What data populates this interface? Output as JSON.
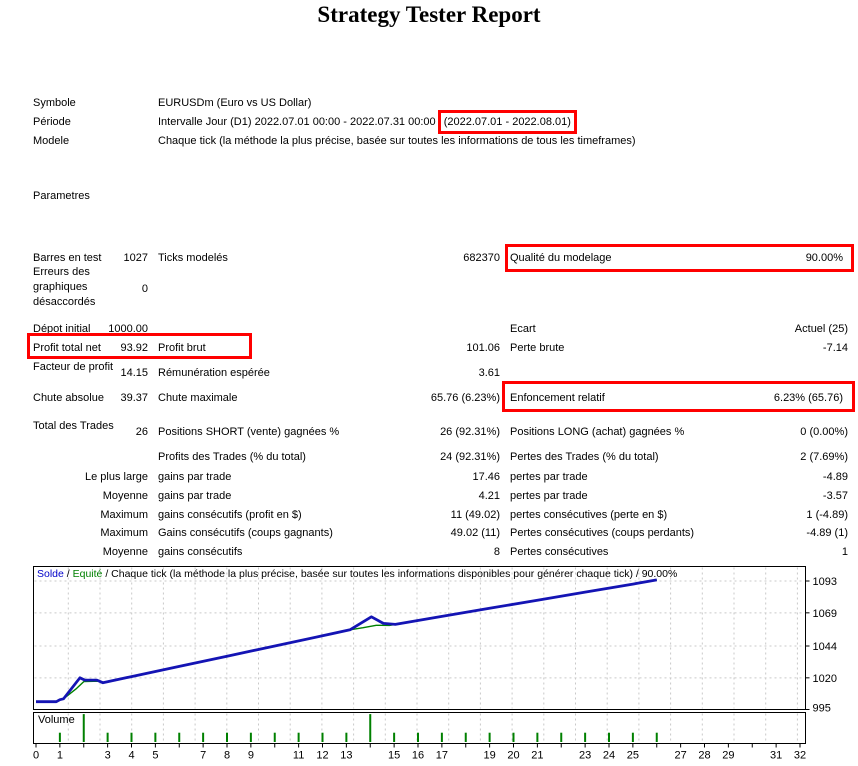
{
  "title": "Strategy Tester Report",
  "colors": {
    "highlight": "#ff0000",
    "balance": "#1414b4",
    "equity": "#008000",
    "grid": "#c9c9c9",
    "axis": "#000000"
  },
  "header": {
    "symbole_label": "Symbole",
    "symbole_value": "EURUSDm (Euro vs US Dollar)",
    "periode_label": "Période",
    "periode_value_pre": "Intervalle Jour (D1) 2022.07.01 00:00 - 2022.07.31 00:00 ",
    "periode_value_boxed": "(2022.07.01 - 2022.08.01)",
    "modele_label": "Modele",
    "modele_value": "Chaque tick (la méthode la plus précise, basée sur toutes les informations de tous les timeframes)",
    "parametres_label": "Parametres"
  },
  "stats": {
    "rows": [
      {
        "c1": "Barres en test",
        "v1": "1027",
        "c2": "Ticks modelés",
        "v2": "682370",
        "c3": "Qualité du modelage",
        "v3": "90.00%"
      },
      {
        "c1": "Erreurs des graphiques désaccordés",
        "v1": "0"
      },
      {
        "c1": "Dépot initial",
        "v1": "1000.00",
        "c3": "Ecart",
        "v3": "Actuel (25)"
      },
      {
        "c1": "Profit total net",
        "v1": "93.92",
        "c2": "Profit brut",
        "v2": "101.06",
        "c3": "Perte brute",
        "v3": "-7.14"
      },
      {
        "c1": "Facteur de profit",
        "v1": "14.15",
        "c2": "Rémunération espérée",
        "v2": "3.61"
      },
      {
        "c1": "Chute absolue",
        "v1": "39.37",
        "c2": "Chute maximale",
        "v2": "65.76 (6.23%)",
        "c3": "Enfoncement relatif",
        "v3": "6.23% (65.76)"
      },
      {
        "c1": "Total des Trades",
        "v1": "26",
        "c2": "Positions SHORT (vente) gagnées %",
        "v2": "26 (92.31%)",
        "c3": "Positions LONG (achat) gagnées %",
        "v3": "0 (0.00%)"
      },
      {
        "c2": "Profits des Trades (% du total)",
        "v2": "24 (92.31%)",
        "c3": "Pertes des Trades (% du total)",
        "v3": "2 (7.69%)"
      },
      {
        "c1": "Le plus large",
        "c2": "gains par trade",
        "v2": "17.46",
        "c3": "pertes par trade",
        "v3": "-4.89"
      },
      {
        "c1": "Moyenne",
        "c2": "gains par trade",
        "v2": "4.21",
        "c3": "pertes par trade",
        "v3": "-3.57"
      },
      {
        "c1": "Maximum",
        "c2": "gains consécutifs (profit en $)",
        "v2": "11 (49.02)",
        "c3": "pertes consécutives (perte en $)",
        "v3": "1 (-4.89)"
      },
      {
        "c1": "Maximum",
        "c2": "Gains consécutifs (coups gagnants)",
        "v2": "49.02 (11)",
        "c3": "Pertes consécutives (coups perdants)",
        "v3": "-4.89 (1)"
      },
      {
        "c1": "Moyenne",
        "c2": "gains consécutifs",
        "v2": "8",
        "c3": "Pertes consécutives",
        "v3": "1"
      }
    ]
  },
  "chart": {
    "legend": {
      "solde": "Solde",
      "sep1": " / ",
      "equite": "Equité",
      "rest": " / Chaque tick (la méthode la plus précise, basée sur toutes les informations disponibles pour générer chaque tick) / 90.00%"
    },
    "volume_label": "Volume"
  },
  "chart_data": {
    "type": "line",
    "title": "Solde / Equité / Chaque tick (la méthode la plus précise, basée sur toutes les informations disponibles pour générer chaque tick) / 90.00%",
    "x_axis": {
      "range": [
        0,
        32
      ],
      "tick_step": 1,
      "labels": [
        0,
        1,
        3,
        4,
        5,
        7,
        8,
        9,
        11,
        12,
        13,
        15,
        16,
        17,
        19,
        20,
        21,
        23,
        24,
        25,
        27,
        28,
        29,
        31,
        32
      ]
    },
    "y_axis": {
      "range": [
        995,
        1093
      ],
      "ticks": [
        1093,
        1069,
        1044,
        1020,
        995
      ]
    },
    "grid": true,
    "legend_position": "top-left-inside",
    "series": [
      {
        "name": "Equité",
        "color": "#008000",
        "points": [
          [
            0,
            1002
          ],
          [
            0.85,
            1002
          ],
          [
            1.0,
            1003.5
          ],
          [
            1.15,
            1004.2
          ],
          [
            1.7,
            1012
          ],
          [
            2.0,
            1017.2
          ],
          [
            2.6,
            1017.5
          ],
          [
            2.8,
            1016.3
          ],
          [
            4,
            1020.9
          ],
          [
            6,
            1028.6
          ],
          [
            8,
            1036.3
          ],
          [
            10,
            1044
          ],
          [
            12,
            1051.7
          ],
          [
            13.15,
            1056.2
          ],
          [
            13.7,
            1057.8
          ],
          [
            14.25,
            1059.6
          ],
          [
            14.8,
            1059.5
          ],
          [
            15.05,
            1060.3
          ],
          [
            17,
            1066.3
          ],
          [
            19,
            1072.4
          ],
          [
            21,
            1078.5
          ],
          [
            23,
            1084.6
          ],
          [
            25,
            1090.7
          ],
          [
            26,
            1093.8
          ]
        ]
      },
      {
        "name": "Solde",
        "color": "#1414b4",
        "points": [
          [
            0,
            1002
          ],
          [
            0.85,
            1002
          ],
          [
            1.0,
            1003.5
          ],
          [
            1.15,
            1004.2
          ],
          [
            1.84,
            1020
          ],
          [
            2.05,
            1018.3
          ],
          [
            2.55,
            1018.3
          ],
          [
            2.8,
            1016.3
          ],
          [
            4,
            1020.9
          ],
          [
            6,
            1028.6
          ],
          [
            8,
            1036.3
          ],
          [
            10,
            1044
          ],
          [
            12,
            1051.7
          ],
          [
            13.15,
            1056.2
          ],
          [
            14.05,
            1066
          ],
          [
            14.55,
            1061
          ],
          [
            15.05,
            1060.3
          ],
          [
            17,
            1066.3
          ],
          [
            19,
            1072.4
          ],
          [
            21,
            1078.5
          ],
          [
            23,
            1084.6
          ],
          [
            25,
            1090.7
          ],
          [
            26,
            1093.8
          ]
        ]
      }
    ],
    "volume": {
      "name": "Volume",
      "color": "#008000",
      "x": [
        1,
        2,
        3,
        4,
        5,
        6,
        7,
        8,
        9,
        10,
        11,
        12,
        13,
        14,
        15,
        16,
        17,
        18,
        19,
        20,
        21,
        22,
        23,
        24,
        25,
        26
      ],
      "values": [
        1,
        3,
        1,
        1,
        1,
        1,
        1,
        1,
        1,
        1,
        1,
        1,
        1,
        3,
        1,
        1,
        1,
        1,
        1,
        1,
        1,
        1,
        1,
        1,
        1,
        1
      ]
    }
  }
}
